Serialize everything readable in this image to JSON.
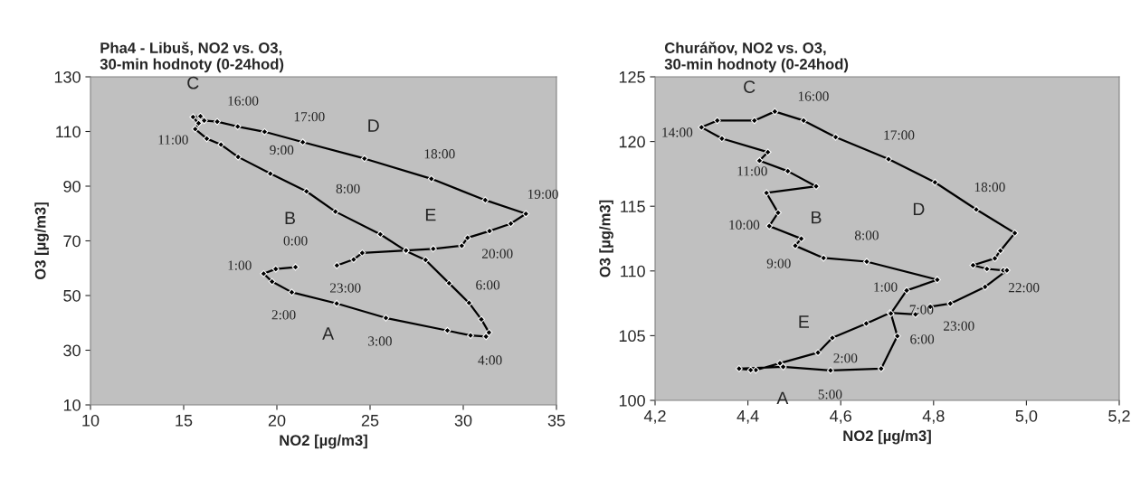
{
  "chart_data": [
    {
      "type": "line",
      "title": "Pha4 - Libuš, NO2 vs. O3,\n30-min hodnoty (0-24hod)",
      "xlabel": "NO2 [µg/m3]",
      "ylabel": "O3 [µg/m3]",
      "xlim": [
        10,
        35
      ],
      "xticks": [
        10,
        15,
        20,
        25,
        30,
        35
      ],
      "ylim": [
        10,
        130
      ],
      "yticks": [
        10,
        30,
        50,
        70,
        90,
        110,
        130
      ],
      "grid": false,
      "marker": "diamond",
      "line_style": "solid",
      "series": [
        {
          "color": "#000000",
          "x": [
            21.0,
            19.94,
            19.29,
            19.74,
            20.8,
            23.21,
            25.85,
            29.15,
            30.39,
            31.22,
            31.38,
            30.97,
            30.31,
            29.24,
            27.98,
            26.93,
            25.55,
            23.14,
            21.59,
            19.65,
            17.92,
            17.0,
            16.24,
            15.62,
            15.8,
            15.5,
            15.9,
            16.1,
            16.8,
            17.9,
            19.34,
            21.39,
            24.7,
            28.29,
            31.18,
            33.36,
            32.55,
            31.41,
            30.23,
            29.92,
            28.39,
            26.93,
            24.58,
            24.12,
            23.22
          ],
          "values": [
            60.4,
            59.7,
            58.0,
            55.1,
            51.2,
            47.1,
            41.8,
            37.2,
            35.4,
            35.0,
            36.5,
            41.3,
            47.3,
            54.5,
            63.0,
            66.3,
            72.4,
            80.7,
            88.1,
            94.6,
            100.7,
            105.2,
            107.4,
            110.9,
            113.0,
            115.3,
            115.6,
            114.0,
            113.6,
            111.8,
            109.9,
            106.1,
            100.1,
            92.7,
            84.9,
            79.9,
            76.3,
            73.6,
            71.1,
            68.2,
            67.1,
            66.5,
            65.6,
            63.2,
            61.0
          ]
        }
      ],
      "annotations": [
        {
          "text": "0:00",
          "x": 21.0,
          "y": 60.4
        },
        {
          "text": "1:00",
          "x": 19.29,
          "y": 58.0
        },
        {
          "text": "2:00",
          "x": 20.8,
          "y": 51.2
        },
        {
          "text": "3:00",
          "x": 25.85,
          "y": 41.8
        },
        {
          "text": "4:00",
          "x": 31.22,
          "y": 35.0
        },
        {
          "text": "6:00",
          "x": 30.31,
          "y": 47.3
        },
        {
          "text": "8:00",
          "x": 23.14,
          "y": 80.7
        },
        {
          "text": "9:00",
          "x": 19.65,
          "y": 94.6
        },
        {
          "text": "11:00",
          "x": 15.62,
          "y": 110.9
        },
        {
          "text": "16:00",
          "x": 17.9,
          "y": 111.8
        },
        {
          "text": "17:00",
          "x": 21.39,
          "y": 106.1
        },
        {
          "text": "18:00",
          "x": 28.29,
          "y": 92.7
        },
        {
          "text": "19:00",
          "x": 33.36,
          "y": 79.9
        },
        {
          "text": "20:00",
          "x": 31.41,
          "y": 73.6
        },
        {
          "text": "23:00",
          "x": 23.22,
          "y": 61.0
        },
        {
          "text": "A",
          "x": 23.21,
          "y": 47.1
        },
        {
          "text": "B",
          "x": 21.59,
          "y": 88.1
        },
        {
          "text": "C",
          "x": 15.5,
          "y": 115.3
        },
        {
          "text": "D",
          "x": 24.7,
          "y": 100.1
        },
        {
          "text": "E",
          "x": 28.39,
          "y": 67.1
        }
      ]
    },
    {
      "type": "line",
      "title": "Churáňov, NO2 vs. O3,\n30-min hodnoty (0-24hod)",
      "xlabel": "NO2 [µg/m3]",
      "ylabel": "O3 [µg/m3]",
      "xlim": [
        4.2,
        5.2
      ],
      "xticks": [
        {
          "value": 4.2,
          "label": "4,2"
        },
        {
          "value": 4.4,
          "label": "4,4"
        },
        {
          "value": 4.6,
          "label": "4,6"
        },
        {
          "value": 4.8,
          "label": "4,8"
        },
        {
          "value": 5.0,
          "label": "5,0"
        },
        {
          "value": 5.2,
          "label": "5,2"
        }
      ],
      "ylim": [
        100,
        125
      ],
      "yticks": [
        100,
        105,
        110,
        115,
        120,
        125
      ],
      "grid": false,
      "marker": "diamond",
      "line_style": "solid",
      "series": [
        {
          "color": "#000000",
          "x": [
            4.761,
            4.706,
            4.655,
            4.582,
            4.551,
            4.469,
            4.417,
            4.406,
            4.381,
            4.476,
            4.578,
            4.687,
            4.722,
            4.708,
            4.742,
            4.808,
            4.656,
            4.563,
            4.502,
            4.515,
            4.446,
            4.465,
            4.44,
            4.547,
            4.486,
            4.425,
            4.443,
            4.344,
            4.3,
            4.334,
            4.414,
            4.458,
            4.52,
            4.589,
            4.703,
            4.803,
            4.892,
            4.975,
            4.944,
            4.932,
            4.885,
            4.915,
            4.95,
            4.958,
            4.911,
            4.836,
            4.793
          ],
          "values": [
            106.64,
            106.76,
            105.94,
            104.83,
            103.69,
            102.87,
            102.34,
            102.34,
            102.45,
            102.59,
            102.31,
            102.45,
            104.97,
            106.71,
            108.49,
            109.32,
            110.72,
            111.0,
            111.95,
            112.49,
            113.47,
            114.5,
            116.03,
            116.54,
            117.71,
            118.52,
            119.18,
            120.23,
            121.1,
            121.62,
            121.62,
            122.32,
            121.62,
            120.34,
            118.64,
            116.85,
            114.75,
            112.93,
            111.56,
            110.97,
            110.44,
            110.16,
            110.05,
            110.05,
            108.77,
            107.48,
            107.23
          ]
        }
      ],
      "annotations": [
        {
          "text": "1:00",
          "x": 4.706,
          "y": 106.76
        },
        {
          "text": "2:00",
          "x": 4.582,
          "y": 104.83
        },
        {
          "text": "5:00",
          "x": 4.578,
          "y": 102.31
        },
        {
          "text": "6:00",
          "x": 4.722,
          "y": 104.97
        },
        {
          "text": "7:00",
          "x": 4.742,
          "y": 108.49
        },
        {
          "text": "8:00",
          "x": 4.656,
          "y": 110.72
        },
        {
          "text": "9:00",
          "x": 4.502,
          "y": 111.95
        },
        {
          "text": "10:00",
          "x": 4.446,
          "y": 113.47
        },
        {
          "text": "11:00",
          "x": 4.44,
          "y": 116.03
        },
        {
          "text": "14:00",
          "x": 4.3,
          "y": 121.1
        },
        {
          "text": "16:00",
          "x": 4.52,
          "y": 121.62
        },
        {
          "text": "17:00",
          "x": 4.703,
          "y": 118.64
        },
        {
          "text": "18:00",
          "x": 4.892,
          "y": 114.75
        },
        {
          "text": "22:00",
          "x": 4.958,
          "y": 110.05
        },
        {
          "text": "23:00",
          "x": 4.836,
          "y": 107.48
        },
        {
          "text": "A",
          "x": 4.476,
          "y": 102.59
        },
        {
          "text": "B",
          "x": 4.547,
          "y": 116.54
        },
        {
          "text": "C",
          "x": 4.414,
          "y": 121.62
        },
        {
          "text": "D",
          "x": 4.803,
          "y": 116.85
        },
        {
          "text": "E",
          "x": 4.551,
          "y": 103.69
        }
      ]
    }
  ]
}
